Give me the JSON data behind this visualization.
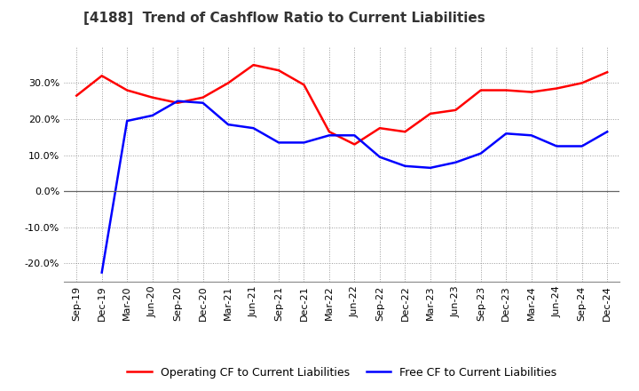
{
  "title": "[4188]  Trend of Cashflow Ratio to Current Liabilities",
  "x_labels": [
    "Sep-19",
    "Dec-19",
    "Mar-20",
    "Jun-20",
    "Sep-20",
    "Dec-20",
    "Mar-21",
    "Jun-21",
    "Sep-21",
    "Dec-21",
    "Mar-22",
    "Jun-22",
    "Sep-22",
    "Dec-22",
    "Mar-23",
    "Jun-23",
    "Sep-23",
    "Dec-23",
    "Mar-24",
    "Jun-24",
    "Sep-24",
    "Dec-24"
  ],
  "operating_cf": [
    26.5,
    32.0,
    28.0,
    26.0,
    24.5,
    26.0,
    30.0,
    35.0,
    33.5,
    29.5,
    16.5,
    13.0,
    17.5,
    16.5,
    21.5,
    22.5,
    28.0,
    28.0,
    27.5,
    28.5,
    30.0,
    33.0
  ],
  "free_cf": [
    null,
    -22.5,
    19.5,
    21.0,
    25.0,
    24.5,
    18.5,
    17.5,
    13.5,
    13.5,
    15.5,
    15.5,
    9.5,
    7.0,
    6.5,
    8.0,
    10.5,
    16.0,
    15.5,
    12.5,
    12.5,
    16.5
  ],
  "operating_color": "#ff0000",
  "free_color": "#0000ff",
  "background_color": "#ffffff",
  "grid_color": "#999999",
  "ylim": [
    -25,
    40
  ],
  "yticks": [
    -20,
    -10,
    0,
    10,
    20,
    30
  ],
  "legend_labels": [
    "Operating CF to Current Liabilities",
    "Free CF to Current Liabilities"
  ],
  "zero_line_color": "#666666",
  "title_fontsize": 11,
  "axis_fontsize": 8,
  "legend_fontsize": 9
}
